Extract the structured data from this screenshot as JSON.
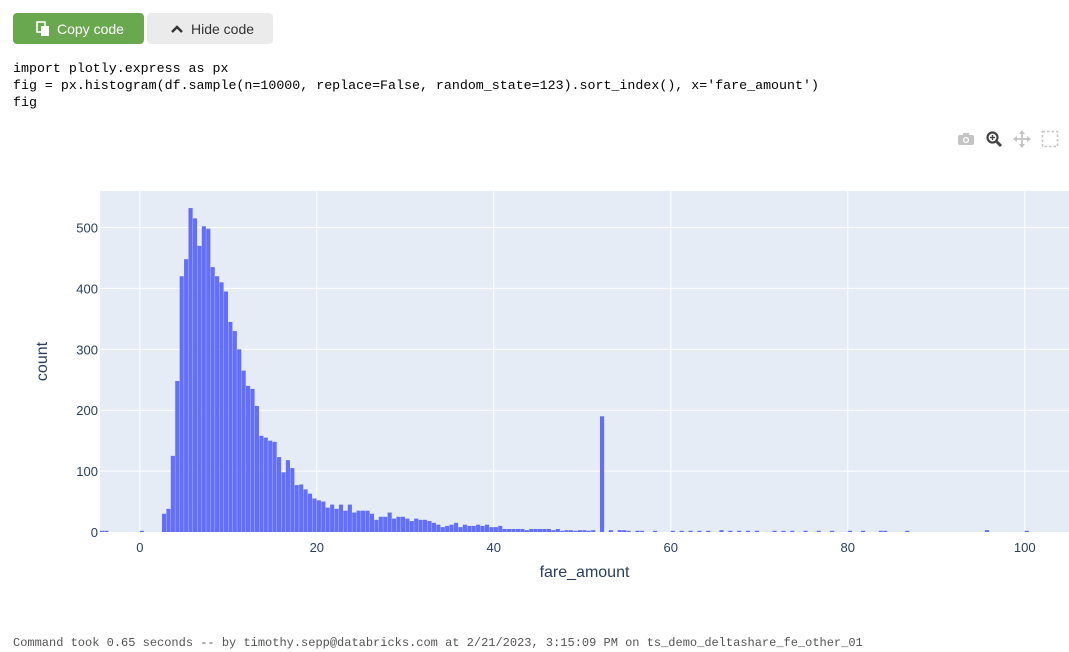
{
  "buttons": {
    "copy_label": "Copy code",
    "hide_label": "Hide code"
  },
  "code": {
    "lines": [
      "import plotly.express as px",
      "fig = px.histogram(df.sample(n=10000, replace=False, random_state=123).sort_index(), x='fare_amount')",
      "fig"
    ]
  },
  "modebar": {
    "icons": [
      "camera-icon",
      "zoom-icon",
      "pan-icon",
      "box-select-icon"
    ]
  },
  "footer": {
    "text": "Command took 0.65 seconds -- by timothy.sepp@databricks.com at 2/21/2023, 3:15:09 PM on ts_demo_deltashare_fe_other_01"
  },
  "colors": {
    "bar": "#636efa",
    "plot_bg": "#e5ecf6",
    "axis_text": "#2a3f5f",
    "copy_button": "#6aa84f"
  },
  "chart_data": {
    "type": "bar",
    "xlabel": "fare_amount",
    "ylabel": "count",
    "xlim": [
      -4.5,
      105
    ],
    "ylim": [
      0,
      560
    ],
    "bin_width": 0.5,
    "x_ticks": [
      0,
      20,
      40,
      60,
      80,
      100
    ],
    "y_ticks": [
      0,
      100,
      200,
      300,
      400,
      500
    ],
    "grid": true,
    "bins": [
      [
        -4.5,
        2
      ],
      [
        -4.0,
        2
      ],
      [
        0.0,
        2
      ],
      [
        2.5,
        30
      ],
      [
        3.0,
        38
      ],
      [
        3.5,
        125
      ],
      [
        4.0,
        248
      ],
      [
        4.5,
        420
      ],
      [
        5.0,
        448
      ],
      [
        5.5,
        532
      ],
      [
        6.0,
        515
      ],
      [
        6.5,
        470
      ],
      [
        7.0,
        502
      ],
      [
        7.5,
        498
      ],
      [
        8.0,
        435
      ],
      [
        8.5,
        420
      ],
      [
        9.0,
        410
      ],
      [
        9.5,
        395
      ],
      [
        10.0,
        345
      ],
      [
        10.5,
        330
      ],
      [
        11.0,
        300
      ],
      [
        11.5,
        265
      ],
      [
        12.0,
        240
      ],
      [
        12.5,
        235
      ],
      [
        13.0,
        207
      ],
      [
        13.5,
        158
      ],
      [
        14.0,
        155
      ],
      [
        14.5,
        150
      ],
      [
        15.0,
        148
      ],
      [
        15.5,
        123
      ],
      [
        16.0,
        98
      ],
      [
        16.5,
        118
      ],
      [
        17.0,
        105
      ],
      [
        17.5,
        77
      ],
      [
        18.0,
        78
      ],
      [
        18.5,
        70
      ],
      [
        19.0,
        63
      ],
      [
        19.5,
        55
      ],
      [
        20.0,
        52
      ],
      [
        20.5,
        50
      ],
      [
        21.0,
        40
      ],
      [
        21.5,
        45
      ],
      [
        22.0,
        38
      ],
      [
        22.5,
        45
      ],
      [
        23.0,
        35
      ],
      [
        23.5,
        45
      ],
      [
        24.0,
        32
      ],
      [
        24.5,
        35
      ],
      [
        25.0,
        35
      ],
      [
        25.5,
        35
      ],
      [
        26.0,
        30
      ],
      [
        26.5,
        20
      ],
      [
        27.0,
        25
      ],
      [
        27.5,
        25
      ],
      [
        28.0,
        32
      ],
      [
        28.5,
        22
      ],
      [
        29.0,
        25
      ],
      [
        29.5,
        25
      ],
      [
        30.0,
        22
      ],
      [
        30.5,
        18
      ],
      [
        31.0,
        22
      ],
      [
        31.5,
        20
      ],
      [
        32.0,
        20
      ],
      [
        32.5,
        18
      ],
      [
        33.0,
        15
      ],
      [
        33.5,
        12
      ],
      [
        34.0,
        8
      ],
      [
        34.5,
        10
      ],
      [
        35.0,
        12
      ],
      [
        35.5,
        15
      ],
      [
        36.0,
        8
      ],
      [
        36.5,
        12
      ],
      [
        37.0,
        10
      ],
      [
        37.5,
        10
      ],
      [
        38.0,
        12
      ],
      [
        38.5,
        10
      ],
      [
        39.0,
        12
      ],
      [
        39.5,
        8
      ],
      [
        40.0,
        8
      ],
      [
        40.5,
        10
      ],
      [
        41.0,
        5
      ],
      [
        41.5,
        5
      ],
      [
        42.0,
        5
      ],
      [
        42.5,
        5
      ],
      [
        43.0,
        5
      ],
      [
        43.5,
        3
      ],
      [
        44.0,
        5
      ],
      [
        44.5,
        5
      ],
      [
        45.0,
        5
      ],
      [
        45.5,
        5
      ],
      [
        46.0,
        5
      ],
      [
        46.5,
        3
      ],
      [
        47.0,
        5
      ],
      [
        47.5,
        2
      ],
      [
        48.0,
        3
      ],
      [
        48.5,
        3
      ],
      [
        49.0,
        2
      ],
      [
        49.5,
        3
      ],
      [
        50.0,
        3
      ],
      [
        50.5,
        2
      ],
      [
        51.0,
        3
      ],
      [
        52.0,
        190
      ],
      [
        53.0,
        3
      ],
      [
        54.0,
        3
      ],
      [
        54.5,
        3
      ],
      [
        55.0,
        2
      ],
      [
        56.0,
        2
      ],
      [
        56.5,
        2
      ],
      [
        58.0,
        2
      ],
      [
        60.0,
        2
      ],
      [
        61.0,
        2
      ],
      [
        62.0,
        2
      ],
      [
        63.0,
        2
      ],
      [
        64.0,
        2
      ],
      [
        65.5,
        3
      ],
      [
        66.5,
        2
      ],
      [
        67.5,
        2
      ],
      [
        68.5,
        2
      ],
      [
        69.5,
        2
      ],
      [
        71.5,
        2
      ],
      [
        72.5,
        2
      ],
      [
        73.5,
        2
      ],
      [
        75.0,
        2
      ],
      [
        76.5,
        2
      ],
      [
        78.0,
        2
      ],
      [
        80.0,
        2
      ],
      [
        81.5,
        2
      ],
      [
        83.5,
        2
      ],
      [
        84.0,
        2
      ],
      [
        86.5,
        2
      ],
      [
        95.5,
        3
      ],
      [
        100.0,
        2
      ]
    ]
  }
}
